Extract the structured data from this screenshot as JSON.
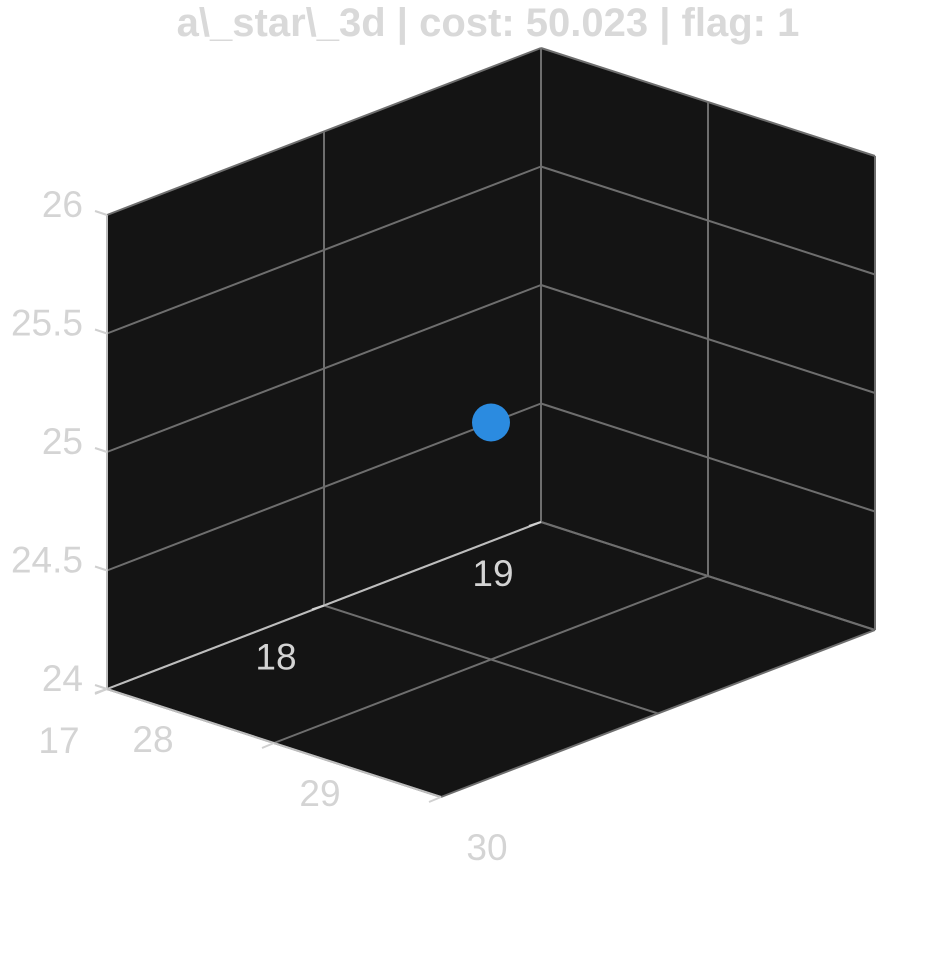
{
  "chart_data": {
    "type": "scatter",
    "projection": "3d",
    "title": "a\\_star\\_3d | cost: 50.023 | flag: 1",
    "xlabel": "",
    "ylabel": "",
    "zlabel": "",
    "xlim": [
      28,
      30
    ],
    "ylim": [
      17,
      19
    ],
    "zlim": [
      24,
      26
    ],
    "x_ticks": [
      "28",
      "29",
      "30"
    ],
    "y_ticks": [
      "17",
      "18",
      "19"
    ],
    "z_ticks": [
      "24",
      "24.5",
      "25",
      "25.5",
      "26"
    ],
    "grid": true,
    "pane_color": "#141414",
    "series": [
      {
        "x": [
          29
        ],
        "y": [
          18
        ],
        "z": [
          25
        ],
        "color": "#2b8be0"
      }
    ]
  }
}
